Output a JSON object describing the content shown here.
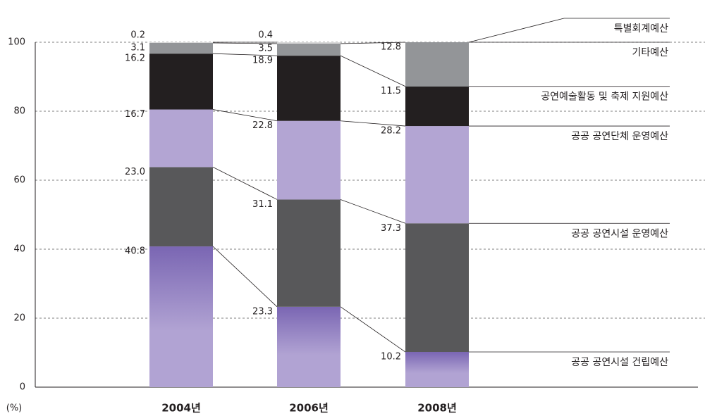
{
  "chart_data": {
    "type": "stacked_bar",
    "y_label": "(%)",
    "categories": [
      "2004년",
      "2006년",
      "2008년"
    ],
    "ylim": [
      0,
      100
    ],
    "yticks": [
      0,
      20,
      40,
      60,
      80,
      100
    ],
    "grid": true,
    "series": [
      {
        "name": "공공 공연시설 건립예산",
        "color": "#b1a3d3",
        "values": [
          40.8,
          23.3,
          10.2
        ]
      },
      {
        "name": "공공 공연시설 운영예산",
        "color": "#58585a",
        "values": [
          23.0,
          31.1,
          37.3
        ],
        "value_labels": [
          "23.0",
          "31.1",
          "37.3"
        ]
      },
      {
        "name": "공공 공연단체 운영예산",
        "color": "#b3a5d3",
        "values": [
          16.7,
          22.8,
          28.2
        ]
      },
      {
        "name": "공연예술활동 및 축제 지원예산",
        "color": "#231f20",
        "values": [
          16.2,
          18.9,
          11.5
        ]
      },
      {
        "name": "기타예산",
        "color": "#939598",
        "values": [
          3.1,
          3.5,
          12.8
        ]
      },
      {
        "name": "특별회계예산",
        "color": "#d9d9d9",
        "values": [
          0.2,
          0.4,
          null
        ]
      }
    ]
  }
}
